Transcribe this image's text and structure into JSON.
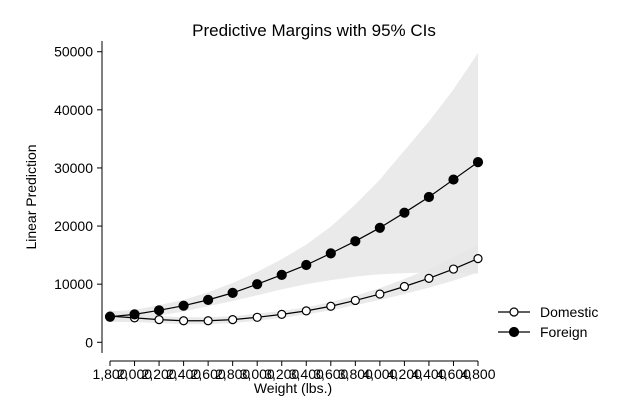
{
  "chart_data": {
    "type": "line",
    "title": "Predictive Margins with 95% CIs",
    "xlabel": "Weight (lbs.)",
    "ylabel": "Linear Prediction",
    "x": [
      1800,
      2000,
      2200,
      2400,
      2600,
      2800,
      3000,
      3200,
      3400,
      3600,
      3800,
      4000,
      4200,
      4400,
      4600,
      4800
    ],
    "x_tick_labels": [
      "1,800",
      "2,000",
      "2,200",
      "2,400",
      "2,600",
      "2,800",
      "3,000",
      "3,200",
      "3,400",
      "3,600",
      "3,800",
      "4,000",
      "4,200",
      "4,400",
      "4,600",
      "4,800"
    ],
    "xlim": [
      1800,
      4800
    ],
    "y_ticks": [
      0,
      10000,
      20000,
      30000,
      40000,
      50000
    ],
    "y_tick_labels": [
      "0",
      "10000",
      "20000",
      "30000",
      "40000",
      "50000"
    ],
    "ylim": [
      -1500,
      51500
    ],
    "grid": false,
    "legend_position": "right",
    "series": [
      {
        "name": "Domestic",
        "marker": "hollow-circle",
        "values": [
          4500,
          4200,
          3900,
          3700,
          3700,
          3900,
          4300,
          4800,
          5400,
          6200,
          7200,
          8300,
          9600,
          11000,
          12600,
          14400
        ],
        "ci_lower": [
          3500,
          3500,
          3300,
          3100,
          3100,
          3300,
          3700,
          4200,
          4800,
          5500,
          6400,
          7300,
          8300,
          9400,
          10600,
          12000
        ],
        "ci_upper": [
          5500,
          4900,
          4500,
          4300,
          4300,
          4500,
          4900,
          5400,
          6000,
          6900,
          8000,
          9300,
          10900,
          12600,
          14600,
          16800
        ]
      },
      {
        "name": "Foreign",
        "marker": "filled-circle",
        "values": [
          4400,
          4800,
          5500,
          6300,
          7300,
          8500,
          10000,
          11600,
          13300,
          15300,
          17400,
          19700,
          22300,
          25000,
          28000,
          31000
        ],
        "ci_lower": [
          3500,
          4000,
          4600,
          5300,
          6200,
          7100,
          8100,
          9100,
          10000,
          10700,
          11300,
          11700,
          11900,
          12000,
          12000,
          11800
        ],
        "ci_upper": [
          5300,
          5600,
          6400,
          7300,
          8600,
          10200,
          12100,
          14300,
          16800,
          19900,
          23700,
          28000,
          33000,
          38000,
          43500,
          49800
        ]
      }
    ],
    "colors": {
      "line": "#000000",
      "ci_band": "#e6e6e6",
      "background": "#ffffff"
    }
  }
}
